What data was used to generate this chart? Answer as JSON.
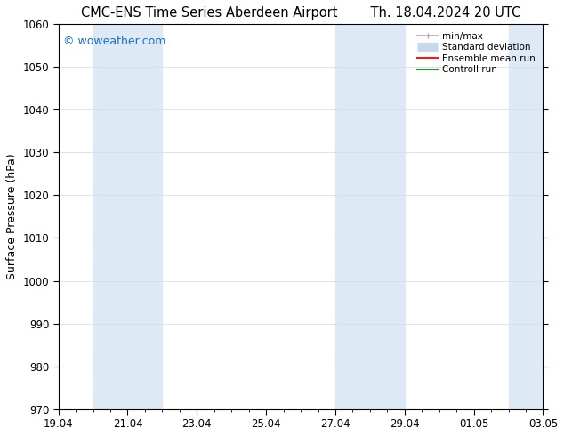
{
  "title_left": "CMC-ENS Time Series Aberdeen Airport",
  "title_right": "Th. 18.04.2024 20 UTC",
  "ylabel": "Surface Pressure (hPa)",
  "ylim": [
    970,
    1060
  ],
  "yticks": [
    970,
    980,
    990,
    1000,
    1010,
    1020,
    1030,
    1040,
    1050,
    1060
  ],
  "xlim_start": 0,
  "xlim_end": 14,
  "xtick_labels": [
    "19.04",
    "21.04",
    "23.04",
    "25.04",
    "27.04",
    "29.04",
    "01.05",
    "03.05"
  ],
  "xtick_positions": [
    0,
    2,
    4,
    6,
    8,
    10,
    12,
    14
  ],
  "shaded_bands": [
    {
      "x_start": 1.0,
      "x_end": 3.0
    },
    {
      "x_start": 8.0,
      "x_end": 10.0
    },
    {
      "x_start": 13.0,
      "x_end": 14.0
    }
  ],
  "shaded_color": "#ddeaf6",
  "watermark_text": "© woweather.com",
  "watermark_color": "#1a6fc4",
  "legend_entries": [
    {
      "label": "min/max",
      "color": "#aaaaaa",
      "lw": 1.2,
      "style": "minmax"
    },
    {
      "label": "Standard deviation",
      "color": "#c8d8e8",
      "lw": 8,
      "style": "band"
    },
    {
      "label": "Ensemble mean run",
      "color": "#dd2222",
      "lw": 1.5,
      "style": "line"
    },
    {
      "label": "Controll run",
      "color": "#338833",
      "lw": 1.5,
      "style": "line"
    }
  ],
  "bg_color": "#ffffff",
  "grid_color": "#dddddd",
  "title_fontsize": 10.5,
  "label_fontsize": 9,
  "tick_fontsize": 8.5,
  "watermark_fontsize": 9
}
